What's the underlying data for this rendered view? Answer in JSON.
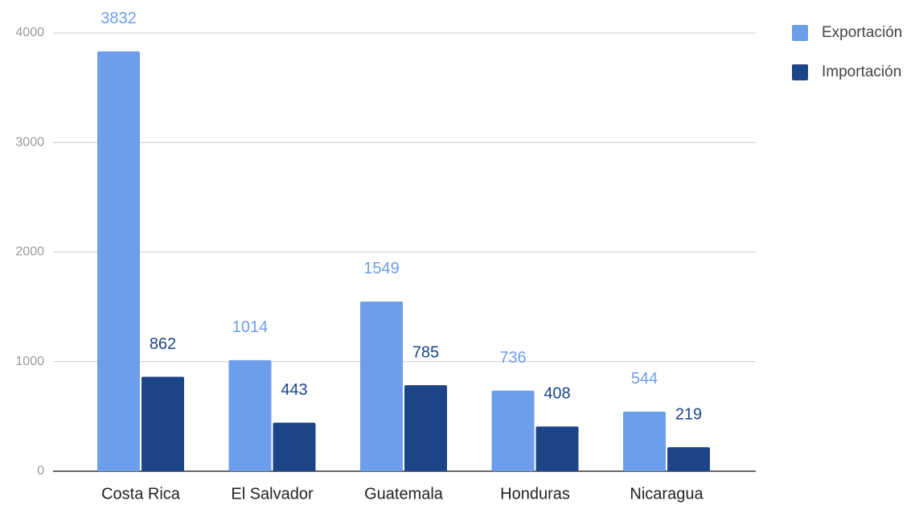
{
  "chart_data": {
    "type": "bar",
    "categories": [
      "Costa Rica",
      "El Salvador",
      "Guatemala",
      "Honduras",
      "Nicaragua"
    ],
    "series": [
      {
        "name": "Exportación",
        "color": "#6d9eeb",
        "values": [
          3832,
          1014,
          1549,
          736,
          544
        ]
      },
      {
        "name": "Importación",
        "color": "#1c4587",
        "values": [
          862,
          443,
          785,
          408,
          219
        ]
      }
    ],
    "ylim": [
      0,
      4000
    ],
    "yticks": [
      0,
      1000,
      2000,
      3000,
      4000
    ],
    "grid": true,
    "legend": "right"
  }
}
